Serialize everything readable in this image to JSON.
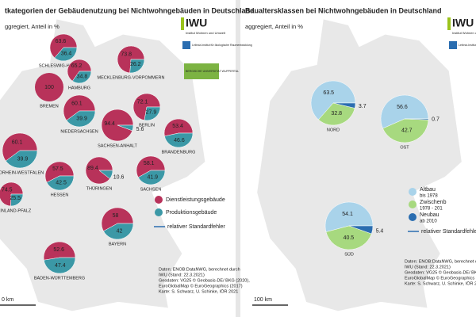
{
  "panels": [
    {
      "title": "tkategorien der Gebäudenutzung bei Nichtwohngebäuden in Deutschland",
      "subtitle": "ggregiert, Anteil in %",
      "series": [
        {
          "name": "Dienstleistungsgebäude",
          "color": "#b8325a"
        },
        {
          "name": "Produktionsgebäude",
          "color": "#3b98a6"
        }
      ],
      "error_label": "relativer Standardfehler",
      "regions": [
        {
          "name": "SCHLESWIG-HOLSTEIN",
          "values": [
            63.6,
            36.4
          ]
        },
        {
          "name": "MECKLENBURG-VORPOMMERN",
          "values": [
            73.8,
            26.2
          ]
        },
        {
          "name": "HAMBURG",
          "values": [
            65.2,
            34.8
          ]
        },
        {
          "name": "BREMEN",
          "values": [
            100
          ]
        },
        {
          "name": "NIEDERSACHSEN",
          "values": [
            60.1,
            39.9
          ]
        },
        {
          "name": "BERLIN",
          "values": [
            72.1,
            27.9
          ]
        },
        {
          "name": "BRANDENBURG",
          "values": [
            53.4,
            46.6
          ]
        },
        {
          "name": "SACHSEN-ANHALT",
          "values": [
            94.4,
            5.6
          ]
        },
        {
          "name": "RDRHEIN-WESTFALEN",
          "values": [
            60.1,
            39.9
          ]
        },
        {
          "name": "HESSEN",
          "values": [
            57.5,
            42.5
          ]
        },
        {
          "name": "THÜRINGEN",
          "values": [
            89.4,
            10.6
          ]
        },
        {
          "name": "SACHSEN",
          "values": [
            58.1,
            41.9
          ]
        },
        {
          "name": "RHEINLAND-PFALZ",
          "values": [
            74.5,
            25.5
          ]
        },
        {
          "name": "BAYERN",
          "values": [
            58,
            42
          ]
        },
        {
          "name": "BADEN-WÜRTTEMBERG",
          "values": [
            52.6,
            47.4
          ]
        }
      ],
      "scale": "0 km",
      "source": [
        "Daten: ENOB:DataNWG, berechnet durch",
        "IWU (Stand: 22.3.2021)",
        "Geodaten: VG25 © Geobasis-DE/ BKG (2020),",
        "EuroGlobalMap © EuroGeographics (2017)",
        "Karte: S. Schwarz, U. Schinke, IÖR 2021"
      ],
      "logos": [
        "IWU",
        "Institut Wohnen und Umwelt",
        "Leibniz-Institut für ökologische Raumentwicklung",
        "BERGISCHE UNIVERSITÄT WUPPERTAL"
      ]
    },
    {
      "title": "Baualtersklassen bei Nichtwohngebäuden in Deutschland",
      "subtitle": "aggregiert, Anteil in %",
      "series": [
        {
          "name": "Altbau",
          "period": "bis 1978",
          "color": "#a9d3ea"
        },
        {
          "name": "Zwischenb",
          "period": "1978 - 201",
          "color": "#a7d97f"
        },
        {
          "name": "Neubau",
          "period": "ab 2010",
          "color": "#2a6db0"
        }
      ],
      "error_label": "relativer Standardfehler",
      "regions": [
        {
          "name": "NORD",
          "values": [
            63.5,
            32.8,
            3.7
          ]
        },
        {
          "name": "OST",
          "values": [
            56.6,
            42.7,
            0.7
          ]
        },
        {
          "name": "SÜD",
          "values": [
            54.1,
            40.5,
            5.4
          ]
        }
      ],
      "scale": "100 km",
      "source": [
        "Daten: ENOB:DataNWG, berechnet dur",
        "IWU (Stand: 22.3.2021)",
        "Geodaten: VG25 © Geobasis-DE/ BKG (",
        "EuroGlobalMap © EuroGeographics (",
        "Karte: S. Schwarz, U. Schinke, IÖR 2"
      ],
      "logos": [
        "IWU",
        "Institut Wohnen und Umwelt",
        "Leibniz-Institut für ökologische Raumentwicklung"
      ]
    }
  ]
}
